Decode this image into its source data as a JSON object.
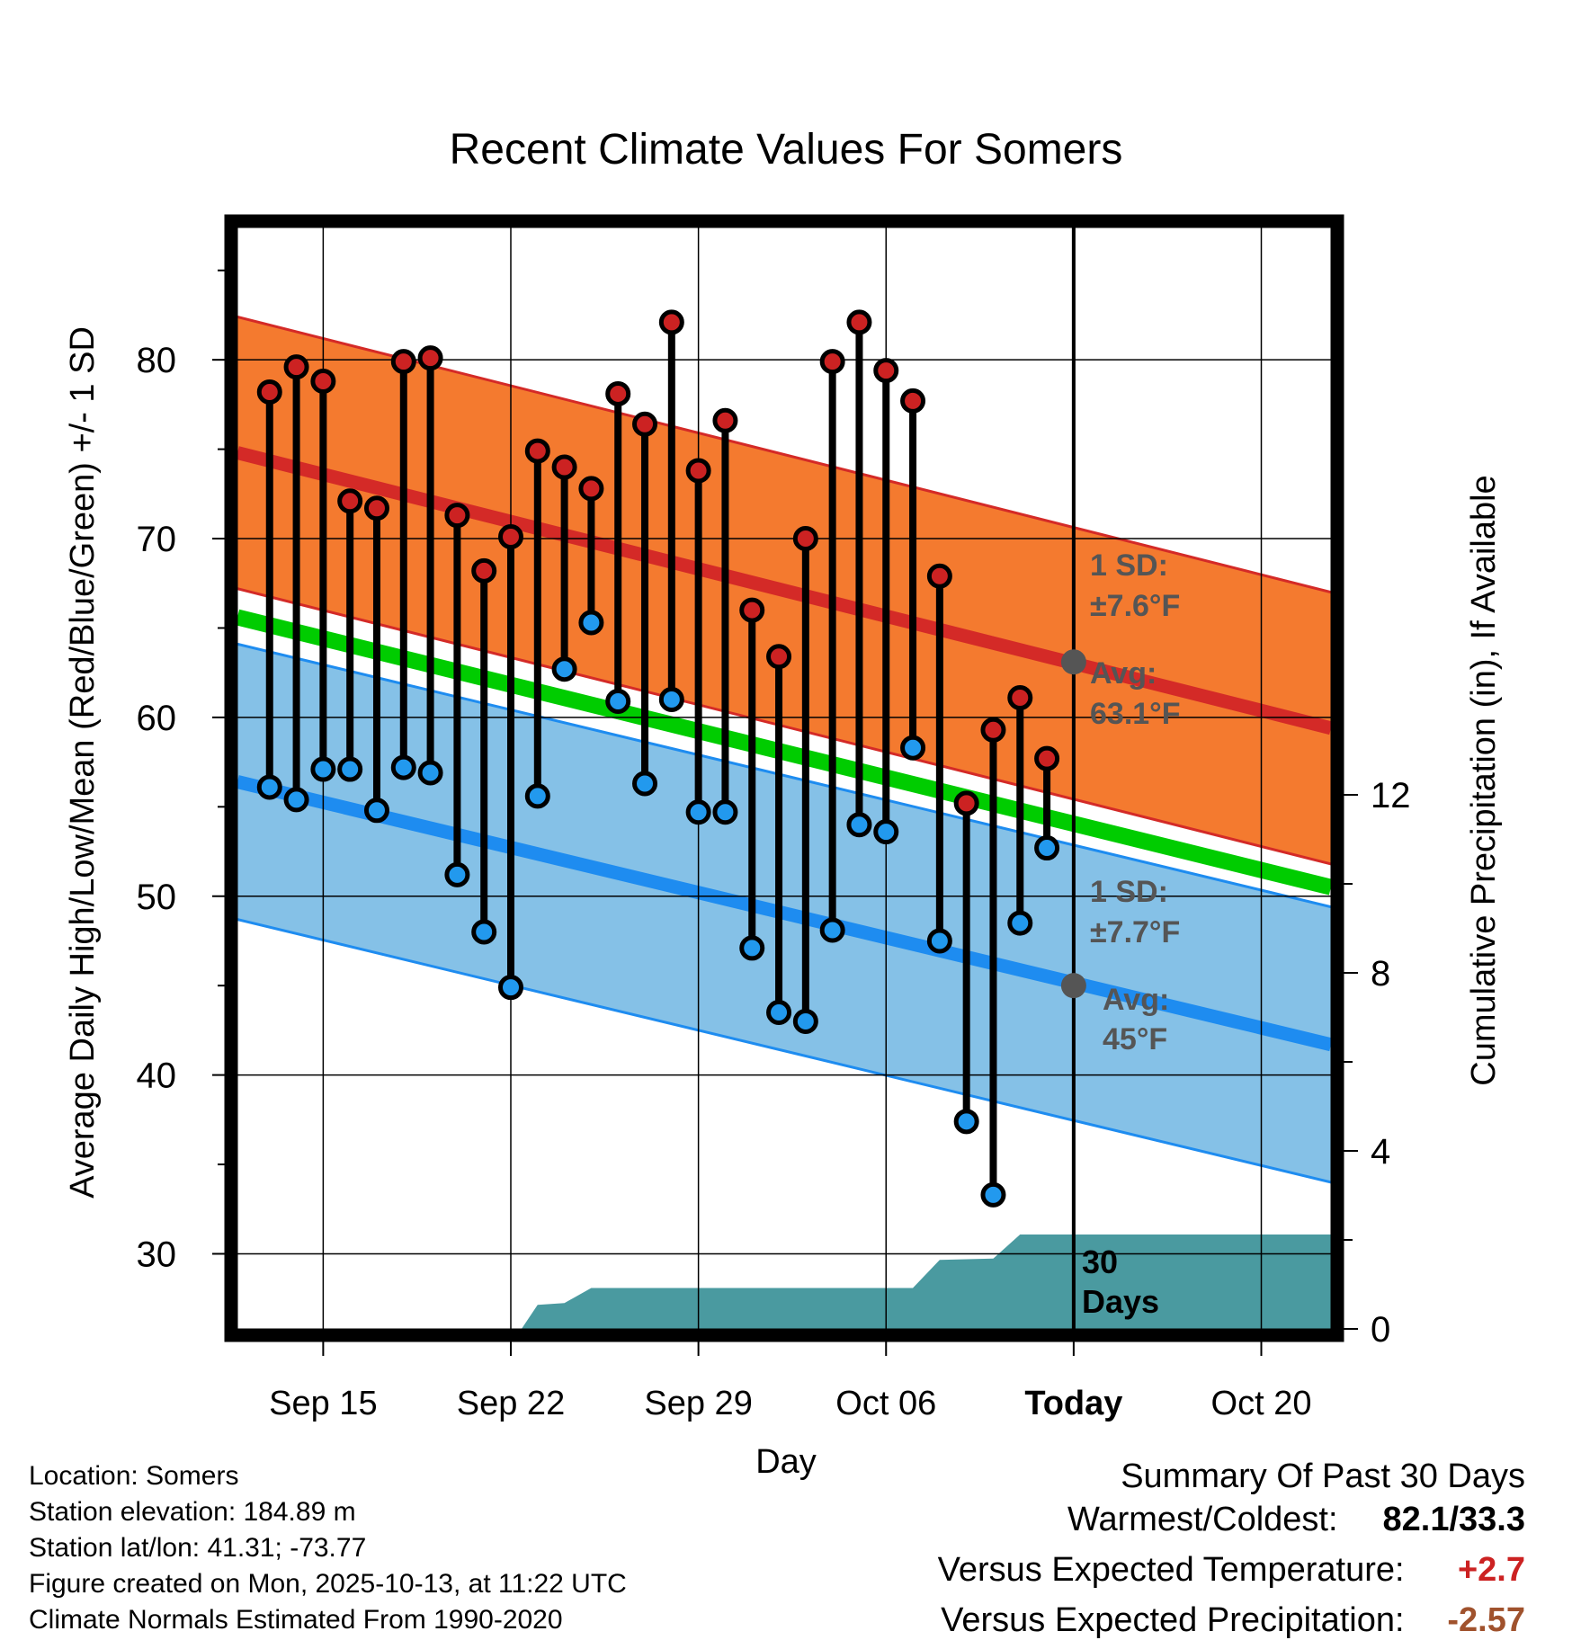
{
  "chart_data": {
    "type": "line",
    "title": "Recent Climate Values For Somers",
    "xlabel": "Day",
    "ylabel": "Average Daily High/Low/Mean (Red/Blue/Green) +/- 1 SD",
    "y2label": "Cumulative Precipitation (in), If Available",
    "ylim": [
      25.8,
      87.4
    ],
    "y_ticks": [
      "80",
      "70",
      "60",
      "50",
      "40",
      "30"
    ],
    "y2_ticks": [
      "12",
      "8",
      "4",
      "0"
    ],
    "x_ticks": [
      {
        "label": "Sep 15",
        "day": 15
      },
      {
        "label": "Sep 22",
        "day": 22
      },
      {
        "label": "Sep 29",
        "day": 29
      },
      {
        "label": "Oct 06",
        "day": 36
      },
      {
        "label": "Today",
        "day": 43
      },
      {
        "label": "Oct 20",
        "day": 50
      }
    ],
    "x_range_days": [
      11.8,
      52.6
    ],
    "today_day": 43,
    "grid": true,
    "normal_high": {
      "start": 74.8,
      "end": 59.4,
      "sd": 7.6
    },
    "normal_low": {
      "start": 56.4,
      "end": 41.7,
      "sd": 7.7
    },
    "normal_mean": {
      "start": 65.6,
      "end": 50.5
    },
    "daily_days": [
      13,
      14,
      15,
      16,
      17,
      18,
      19,
      20,
      21,
      22,
      23,
      24,
      25,
      26,
      27,
      28,
      29,
      30,
      31,
      32,
      33,
      34,
      35,
      36,
      37,
      38,
      39,
      40,
      41,
      42
    ],
    "daily_highs": [
      78.2,
      79.6,
      78.8,
      72.1,
      71.7,
      79.9,
      80.1,
      71.3,
      68.2,
      70.1,
      74.9,
      74.0,
      72.8,
      78.1,
      76.4,
      82.1,
      73.8,
      76.6,
      66.0,
      63.4,
      70.0,
      79.9,
      82.1,
      79.4,
      77.7,
      67.9,
      55.2,
      59.3,
      61.1,
      57.7
    ],
    "daily_lows": [
      56.1,
      55.4,
      57.1,
      57.1,
      54.8,
      57.2,
      56.9,
      51.2,
      48.0,
      44.9,
      55.6,
      62.7,
      65.3,
      60.9,
      56.3,
      61.0,
      54.7,
      54.7,
      47.1,
      43.5,
      43.0,
      48.1,
      54.0,
      53.6,
      58.3,
      47.5,
      37.4,
      33.3,
      48.5,
      52.7
    ],
    "precip_cumulative": [
      {
        "day": 22.4,
        "in": 0.0
      },
      {
        "day": 23.0,
        "in": 0.54
      },
      {
        "day": 24.0,
        "in": 0.58
      },
      {
        "day": 25.0,
        "in": 0.92
      },
      {
        "day": 30.0,
        "in": 0.92
      },
      {
        "day": 35.0,
        "in": 0.92
      },
      {
        "day": 37.0,
        "in": 0.92
      },
      {
        "day": 38.0,
        "in": 1.55
      },
      {
        "day": 40.0,
        "in": 1.58
      },
      {
        "day": 41.0,
        "in": 2.12
      },
      {
        "day": 52.6,
        "in": 2.12
      }
    ],
    "annotations": {
      "high_sd_line1": "1 SD:",
      "high_sd_line2": "±7.6°F",
      "high_avg_line1": "Avg:",
      "high_avg_line2": "63.1°F",
      "high_avg_value": 63.1,
      "low_sd_line1": "1 SD:",
      "low_sd_line2": "±7.7°F",
      "low_avg_line1": "Avg:",
      "low_avg_line2": "45°F",
      "low_avg_value": 45.0,
      "precip_days_line1": "30",
      "precip_days_line2": "Days"
    },
    "colors": {
      "high_band": "#f47a2f",
      "high_line": "#d42a27",
      "low_band": "#85c1e7",
      "low_line": "#1e8cf0",
      "mean_line": "#00cc00",
      "precip": "#4a9aa0",
      "high_dot": "#cc2222",
      "low_dot": "#2299ee",
      "avg_marker": "#555555",
      "annotation_text": "#555555"
    }
  },
  "footer": {
    "location": "Location: Somers",
    "elevation": "Station elevation: 184.89 m",
    "latlon": "Station lat/lon: 41.31; -73.77",
    "created": "Figure created on Mon, 2025-10-13, at 11:22 UTC",
    "normals": "Climate Normals Estimated From 1990-2020"
  },
  "summary": {
    "title": "Summary Of Past 30 Days",
    "warm_cold_label": "Warmest/Coldest:",
    "warm_cold_value": "82.1/33.3",
    "temp_label": "Versus Expected Temperature:",
    "temp_value": "+2.7",
    "temp_color": "#cc2222",
    "precip_label": "Versus Expected Precipitation:",
    "precip_value": "-2.57",
    "precip_color": "#a0522d"
  }
}
